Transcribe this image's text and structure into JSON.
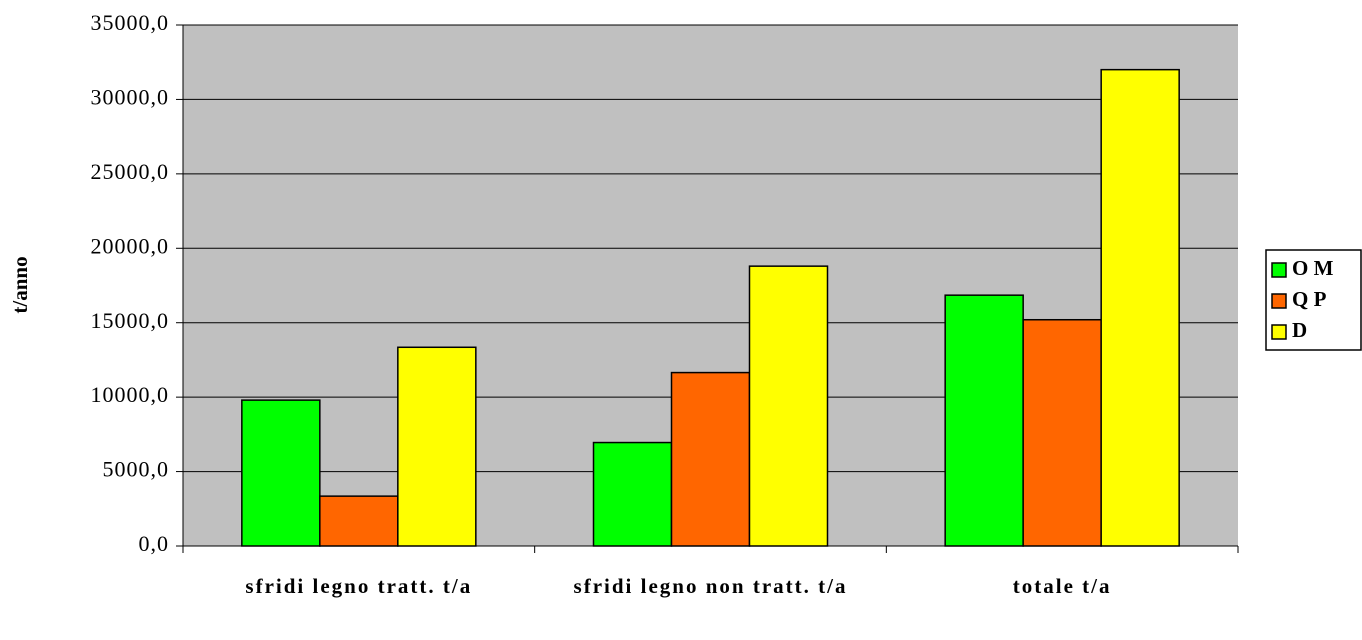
{
  "chart_data": {
    "type": "bar",
    "y_label": "t/anno",
    "categories": [
      "sfridi legno tratt. t/a",
      "sfridi legno non tratt. t/a",
      "totale t/a"
    ],
    "series": [
      {
        "name": "O M",
        "color": "#00ff00",
        "values": [
          9800,
          6950,
          16850
        ]
      },
      {
        "name": "Q P",
        "color": "#ff6600",
        "values": [
          3350,
          11650,
          15200
        ]
      },
      {
        "name": "D",
        "color": "#ffff00",
        "values": [
          13350,
          18800,
          32000
        ]
      }
    ],
    "ylim": [
      0,
      35000
    ],
    "yticks": [
      {
        "value": 0,
        "label": "0,0"
      },
      {
        "value": 5000,
        "label": "5000,0"
      },
      {
        "value": 10000,
        "label": "10000,0"
      },
      {
        "value": 15000,
        "label": "15000,0"
      },
      {
        "value": 20000,
        "label": "20000,0"
      },
      {
        "value": 25000,
        "label": "25000,0"
      },
      {
        "value": 30000,
        "label": "30000,0"
      },
      {
        "value": 35000,
        "label": "35000,0"
      }
    ],
    "grid": true,
    "plot_background": "#c0c0c0",
    "legend": "right"
  }
}
